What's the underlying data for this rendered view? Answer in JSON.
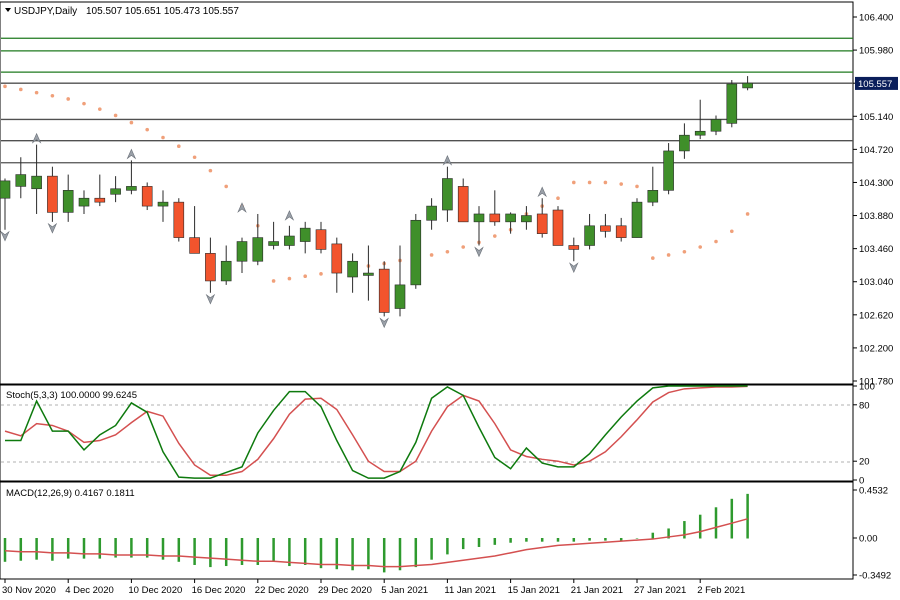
{
  "header": {
    "symbol_label": "USDJPY,Daily",
    "ohlc": "105.507 105.651 105.473 105.557"
  },
  "colors": {
    "bull": "#3f8f2a",
    "bear": "#f2542d",
    "sar": "#f0a07a",
    "level_green": "#1f7a1f",
    "level_gray": "#505050",
    "stoch_main": "#0e7a0e",
    "stoch_signal": "#d45050",
    "macd_hist": "#2e9a2e",
    "macd_signal": "#d45050",
    "price_tag_bg": "#0a1e5a"
  },
  "price_panel": {
    "ymin": 101.78,
    "ymax": 106.4,
    "ticks": [
      "106.400",
      "105.980",
      "105.560",
      "105.140",
      "104.720",
      "104.300",
      "103.880",
      "103.460",
      "103.040",
      "102.620",
      "102.200",
      "101.780"
    ],
    "tick_values": [
      106.4,
      105.98,
      105.56,
      105.14,
      104.72,
      104.3,
      103.88,
      103.46,
      103.04,
      102.62,
      102.2,
      101.78
    ],
    "current_price": "105.557",
    "current_value": 105.557,
    "levels_green": [
      106.13,
      105.97,
      105.7
    ],
    "levels_gray": [
      105.56,
      105.1,
      104.83,
      104.55
    ]
  },
  "stoch_panel": {
    "label": "Stoch(5,3,3) 100.0000 99.6245",
    "ticks": [
      "100",
      "80",
      "20",
      "0"
    ],
    "tick_values": [
      100,
      80,
      20,
      0
    ]
  },
  "macd_panel": {
    "label": "MACD(12,26,9) 0.4167 0.1811",
    "ticks": [
      "0.4532",
      "0.00",
      "-0.3492"
    ],
    "tick_values": [
      0.4532,
      0.0,
      -0.3492
    ]
  },
  "x_axis": {
    "labels": [
      {
        "text": "30 Nov 2020",
        "bar": 0
      },
      {
        "text": "4 Dec 2020",
        "bar": 4
      },
      {
        "text": "10 Dec 2020",
        "bar": 8
      },
      {
        "text": "16 Dec 2020",
        "bar": 12
      },
      {
        "text": "22 Dec 2020",
        "bar": 16
      },
      {
        "text": "29 Dec 2020",
        "bar": 20
      },
      {
        "text": "5 Jan 2021",
        "bar": 24
      },
      {
        "text": "11 Jan 2021",
        "bar": 28
      },
      {
        "text": "15 Jan 2021",
        "bar": 32
      },
      {
        "text": "21 Jan 2021",
        "bar": 36
      },
      {
        "text": "27 Jan 2021",
        "bar": 40
      },
      {
        "text": "2 Feb 2021",
        "bar": 44
      }
    ]
  },
  "chart_data": {
    "type": "candlestick",
    "title": "USDJPY,Daily",
    "candles": [
      {
        "o": 104.1,
        "h": 104.35,
        "l": 103.7,
        "c": 104.32
      },
      {
        "o": 104.25,
        "h": 104.62,
        "l": 104.1,
        "c": 104.4
      },
      {
        "o": 104.22,
        "h": 104.78,
        "l": 103.9,
        "c": 104.38
      },
      {
        "o": 104.38,
        "h": 104.5,
        "l": 103.8,
        "c": 103.92
      },
      {
        "o": 103.92,
        "h": 104.4,
        "l": 103.8,
        "c": 104.2
      },
      {
        "o": 104.0,
        "h": 104.2,
        "l": 103.9,
        "c": 104.1
      },
      {
        "o": 104.1,
        "h": 104.4,
        "l": 104.0,
        "c": 104.05
      },
      {
        "o": 104.15,
        "h": 104.38,
        "l": 104.05,
        "c": 104.22
      },
      {
        "o": 104.2,
        "h": 104.58,
        "l": 104.15,
        "c": 104.25
      },
      {
        "o": 104.25,
        "h": 104.3,
        "l": 103.95,
        "c": 104.0
      },
      {
        "o": 104.0,
        "h": 104.2,
        "l": 103.8,
        "c": 104.05
      },
      {
        "o": 104.05,
        "h": 104.1,
        "l": 103.55,
        "c": 103.6
      },
      {
        "o": 103.6,
        "h": 104.0,
        "l": 103.4,
        "c": 103.4
      },
      {
        "o": 103.4,
        "h": 103.6,
        "l": 102.9,
        "c": 103.05
      },
      {
        "o": 103.05,
        "h": 103.5,
        "l": 103.0,
        "c": 103.3
      },
      {
        "o": 103.3,
        "h": 103.6,
        "l": 103.15,
        "c": 103.55
      },
      {
        "o": 103.3,
        "h": 103.9,
        "l": 103.25,
        "c": 103.6
      },
      {
        "o": 103.5,
        "h": 103.8,
        "l": 103.45,
        "c": 103.55
      },
      {
        "o": 103.5,
        "h": 103.75,
        "l": 103.45,
        "c": 103.62
      },
      {
        "o": 103.55,
        "h": 103.8,
        "l": 103.4,
        "c": 103.72
      },
      {
        "o": 103.7,
        "h": 103.8,
        "l": 103.4,
        "c": 103.45
      },
      {
        "o": 103.52,
        "h": 103.6,
        "l": 102.9,
        "c": 103.15
      },
      {
        "o": 103.1,
        "h": 103.4,
        "l": 102.9,
        "c": 103.3
      },
      {
        "o": 103.12,
        "h": 103.5,
        "l": 102.8,
        "c": 103.15
      },
      {
        "o": 103.2,
        "h": 103.3,
        "l": 102.6,
        "c": 102.65
      },
      {
        "o": 102.7,
        "h": 103.5,
        "l": 102.6,
        "c": 103.0
      },
      {
        "o": 103.0,
        "h": 103.9,
        "l": 102.95,
        "c": 103.82
      },
      {
        "o": 103.82,
        "h": 104.1,
        "l": 103.7,
        "c": 104.0
      },
      {
        "o": 103.95,
        "h": 104.5,
        "l": 103.8,
        "c": 104.35
      },
      {
        "o": 104.25,
        "h": 104.35,
        "l": 103.8,
        "c": 103.8
      },
      {
        "o": 103.8,
        "h": 104.0,
        "l": 103.5,
        "c": 103.9
      },
      {
        "o": 103.9,
        "h": 104.2,
        "l": 103.75,
        "c": 103.8
      },
      {
        "o": 103.8,
        "h": 103.92,
        "l": 103.65,
        "c": 103.9
      },
      {
        "o": 103.8,
        "h": 104.0,
        "l": 103.7,
        "c": 103.88
      },
      {
        "o": 103.9,
        "h": 104.1,
        "l": 103.6,
        "c": 103.65
      },
      {
        "o": 103.95,
        "h": 104.0,
        "l": 103.5,
        "c": 103.5
      },
      {
        "o": 103.5,
        "h": 103.6,
        "l": 103.3,
        "c": 103.45
      },
      {
        "o": 103.5,
        "h": 103.9,
        "l": 103.45,
        "c": 103.75
      },
      {
        "o": 103.75,
        "h": 103.9,
        "l": 103.6,
        "c": 103.68
      },
      {
        "o": 103.75,
        "h": 103.85,
        "l": 103.55,
        "c": 103.6
      },
      {
        "o": 103.6,
        "h": 104.1,
        "l": 103.6,
        "c": 104.05
      },
      {
        "o": 104.05,
        "h": 104.5,
        "l": 104.0,
        "c": 104.2
      },
      {
        "o": 104.2,
        "h": 104.8,
        "l": 104.15,
        "c": 104.7
      },
      {
        "o": 104.7,
        "h": 105.05,
        "l": 104.6,
        "c": 104.9
      },
      {
        "o": 104.9,
        "h": 105.35,
        "l": 104.85,
        "c": 104.95
      },
      {
        "o": 104.95,
        "h": 105.15,
        "l": 104.9,
        "c": 105.1
      },
      {
        "o": 105.05,
        "h": 105.6,
        "l": 105.0,
        "c": 105.55
      },
      {
        "o": 105.5,
        "h": 105.65,
        "l": 105.47,
        "c": 105.56
      }
    ],
    "parabolic_sar": [
      105.52,
      105.48,
      105.44,
      105.4,
      105.36,
      105.3,
      105.23,
      105.15,
      105.06,
      104.97,
      104.87,
      104.76,
      104.62,
      104.45,
      104.25,
      104.0,
      103.75,
      103.05,
      103.08,
      103.11,
      103.14,
      103.18,
      103.21,
      103.24,
      103.27,
      103.31,
      103.34,
      103.38,
      103.42,
      103.48,
      103.54,
      103.62,
      103.7,
      103.9,
      104.0,
      104.1,
      104.3,
      104.3,
      104.3,
      104.28,
      104.25,
      103.34,
      103.38,
      103.42,
      103.48,
      103.55,
      103.68,
      103.9
    ],
    "fractals_up": [
      {
        "bar": 2,
        "value": 104.78
      },
      {
        "bar": 8,
        "value": 104.58
      },
      {
        "bar": 15,
        "value": 103.9
      },
      {
        "bar": 18,
        "value": 103.8
      },
      {
        "bar": 28,
        "value": 104.5
      },
      {
        "bar": 34,
        "value": 104.1
      }
    ],
    "fractals_down": [
      {
        "bar": 0,
        "value": 103.7
      },
      {
        "bar": 3,
        "value": 103.8
      },
      {
        "bar": 13,
        "value": 102.9
      },
      {
        "bar": 24,
        "value": 102.6
      },
      {
        "bar": 30,
        "value": 103.5
      },
      {
        "bar": 36,
        "value": 103.3
      }
    ],
    "stochastic": {
      "main": [
        42,
        42,
        84,
        52,
        52,
        32,
        48,
        58,
        82,
        72,
        30,
        3,
        2,
        2,
        8,
        14,
        50,
        74,
        94,
        94,
        78,
        42,
        10,
        2,
        2,
        9,
        40,
        87,
        99,
        90,
        56,
        24,
        12,
        34,
        18,
        14,
        14,
        28,
        48,
        67,
        84,
        98,
        100,
        100,
        100,
        100,
        100,
        100
      ],
      "signal": [
        52,
        47,
        60,
        58,
        52,
        40,
        42,
        48,
        61,
        73,
        68,
        39,
        16,
        5,
        5,
        9,
        22,
        44,
        70,
        86,
        87,
        75,
        48,
        20,
        9,
        9,
        20,
        52,
        78,
        90,
        84,
        60,
        32,
        25,
        22,
        20,
        16,
        20,
        30,
        46,
        64,
        83,
        93,
        97,
        98,
        99,
        99,
        99.6
      ]
    },
    "macd": {
      "hist": [
        -0.22,
        -0.21,
        -0.2,
        -0.21,
        -0.19,
        -0.19,
        -0.19,
        -0.18,
        -0.18,
        -0.18,
        -0.2,
        -0.22,
        -0.25,
        -0.27,
        -0.26,
        -0.25,
        -0.25,
        -0.22,
        -0.26,
        -0.25,
        -0.28,
        -0.29,
        -0.3,
        -0.29,
        -0.32,
        -0.3,
        -0.27,
        -0.2,
        -0.15,
        -0.1,
        -0.08,
        -0.06,
        -0.04,
        -0.03,
        -0.03,
        -0.03,
        -0.03,
        -0.02,
        -0.02,
        -0.02,
        0.0,
        0.05,
        0.09,
        0.16,
        0.22,
        0.29,
        0.37,
        0.4167
      ],
      "signal": [
        -0.12,
        -0.13,
        -0.13,
        -0.14,
        -0.14,
        -0.15,
        -0.15,
        -0.16,
        -0.16,
        -0.16,
        -0.17,
        -0.17,
        -0.18,
        -0.19,
        -0.2,
        -0.21,
        -0.22,
        -0.22,
        -0.23,
        -0.24,
        -0.25,
        -0.25,
        -0.26,
        -0.26,
        -0.27,
        -0.27,
        -0.26,
        -0.25,
        -0.23,
        -0.21,
        -0.19,
        -0.17,
        -0.14,
        -0.11,
        -0.09,
        -0.07,
        -0.06,
        -0.05,
        -0.04,
        -0.03,
        -0.02,
        -0.01,
        0.01,
        0.03,
        0.06,
        0.1,
        0.14,
        0.1811
      ]
    }
  }
}
